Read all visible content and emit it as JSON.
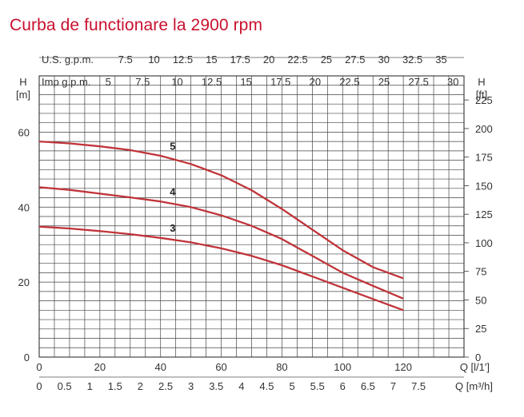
{
  "chart_data": {
    "type": "line",
    "title": "Curba de functionare la 2900 rpm",
    "xlabel": "Q [l/1']",
    "xlabel_m3h": "Q [m³/h]",
    "ylabel_left": "H [m]",
    "ylabel_right": "H [ft]",
    "xlim": [
      0,
      140
    ],
    "ylim": [
      0,
      75
    ],
    "grid": true,
    "colors": {
      "curve": "#c0343a",
      "grid": "#444444",
      "title": "#c8102e"
    },
    "axes": {
      "bottom_lmin": {
        "ticks": [
          0,
          20,
          40,
          60,
          80,
          100,
          120
        ],
        "labels": [
          "0",
          "20",
          "40",
          "60",
          "80",
          "100",
          "120"
        ]
      },
      "bottom_m3h": {
        "ticks": [
          0,
          0.5,
          1,
          1.5,
          2,
          2.5,
          3,
          3.5,
          4,
          4.5,
          5,
          5.5,
          6,
          6.5,
          7,
          7.5
        ],
        "labels": [
          "0",
          "0.5",
          "1",
          "1.5",
          "2",
          "2.5",
          "3",
          "3.5",
          "4",
          "4.5",
          "5",
          "5.5",
          "6",
          "6.5",
          "7",
          "7.5"
        ]
      },
      "top_us_gpm": {
        "label": "U.S. g.p.m.",
        "ticks": [
          7.5,
          10,
          12.5,
          15,
          17.5,
          20,
          22.5,
          25,
          27.5,
          30,
          32.5,
          35
        ],
        "labels": [
          "7.5",
          "10",
          "12.5",
          "15",
          "17.5",
          "20",
          "22.5",
          "25",
          "27.5",
          "30",
          "32.5",
          "35"
        ]
      },
      "top_imp_gpm": {
        "label": "Imp g.p.m.",
        "ticks": [
          5,
          7.5,
          10,
          12.5,
          15,
          17.5,
          20,
          22.5,
          25,
          27.5,
          30
        ],
        "labels": [
          "5",
          "7.5",
          "10",
          "12.5",
          "15",
          "17.5",
          "20",
          "22.5",
          "25",
          "27.5",
          "30"
        ]
      },
      "left_m": {
        "ticks": [
          0,
          20,
          40,
          60
        ],
        "labels": [
          "0",
          "20",
          "40",
          "60"
        ]
      },
      "right_ft": {
        "ticks": [
          0,
          25,
          50,
          75,
          100,
          125,
          150,
          175,
          200,
          225
        ],
        "labels": [
          "0",
          "25",
          "50",
          "75",
          "100",
          "125",
          "150",
          "175",
          "200",
          "225"
        ]
      }
    },
    "series": [
      {
        "name": "5",
        "x": [
          0,
          10,
          20,
          30,
          40,
          50,
          60,
          70,
          80,
          90,
          100,
          110,
          120
        ],
        "y": [
          57.5,
          57,
          56.2,
          55.2,
          53.7,
          51.5,
          48.5,
          44.5,
          39.5,
          34,
          28.5,
          24,
          21
        ]
      },
      {
        "name": "4",
        "x": [
          0,
          10,
          20,
          30,
          40,
          50,
          60,
          70,
          80,
          90,
          100,
          110,
          120
        ],
        "y": [
          45.3,
          44.6,
          43.6,
          42.6,
          41.5,
          40,
          37.8,
          35,
          31.5,
          27,
          22.5,
          19,
          15.6
        ]
      },
      {
        "name": "3",
        "x": [
          0,
          10,
          20,
          30,
          40,
          50,
          60,
          70,
          80,
          90,
          100,
          110,
          120
        ],
        "y": [
          34.8,
          34.3,
          33.6,
          32.8,
          31.8,
          30.6,
          29,
          27,
          24.5,
          21.5,
          18.5,
          15.5,
          12.5
        ]
      }
    ]
  }
}
